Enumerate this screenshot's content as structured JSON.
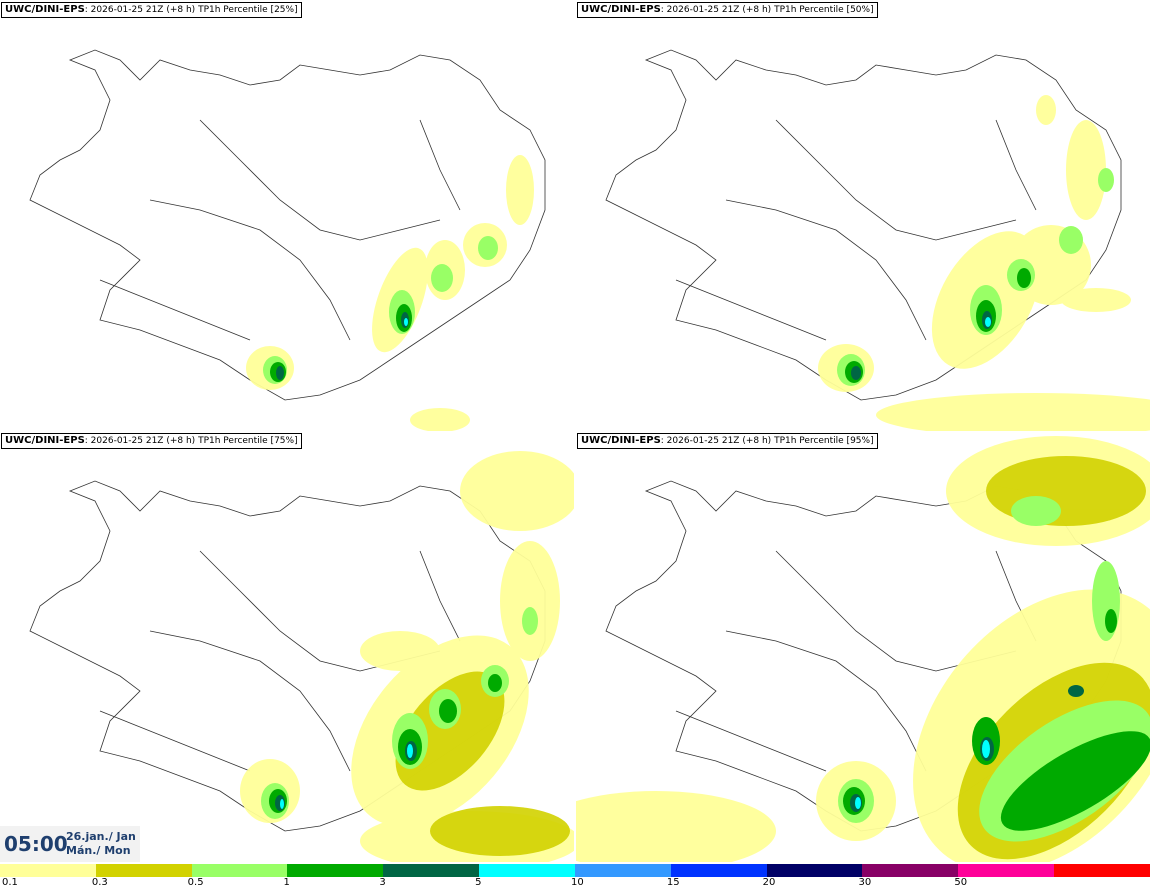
{
  "panels": [
    {
      "model": "UWC/DINI-EPS",
      "run": "2026-01-25 21Z",
      "lead": "(+8 h)",
      "label": "TP1h Percentile [25%]"
    },
    {
      "model": "UWC/DINI-EPS",
      "run": "2026-01-25 21Z",
      "lead": "(+8 h)",
      "label": "TP1h Percentile [50%]"
    },
    {
      "model": "UWC/DINI-EPS",
      "run": "2026-01-25 21Z",
      "lead": "(+8 h)",
      "label": "TP1h Percentile [75%]"
    },
    {
      "model": "UWC/DINI-EPS",
      "run": "2026-01-25 21Z",
      "lead": "(+8 h)",
      "label": "TP1h Percentile [95%]"
    }
  ],
  "valid_time": {
    "time": "05:00",
    "date_line1": "26.jan./ Jan",
    "date_line2": "Mán./ Mon"
  },
  "legend": {
    "colors": [
      "#ffff99",
      "#d2d200",
      "#99ff66",
      "#00aa00",
      "#006644",
      "#00ffff",
      "#3399ff",
      "#0033ff",
      "#000066",
      "#880066",
      "#ff0099",
      "#ff0000"
    ],
    "ticks": [
      "0.1",
      "0.3",
      "0.5",
      "1",
      "3",
      "5",
      "10",
      "15",
      "20",
      "30",
      "50"
    ]
  }
}
